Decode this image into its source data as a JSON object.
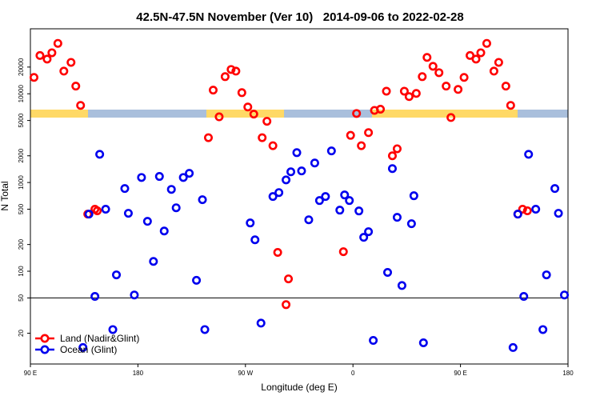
{
  "chart_data": {
    "type": "scatter",
    "title": "42.5N-47.5N November (Ver 10)   2014-09-06 to 2022-02-28",
    "xlabel": "Longitude (deg E)",
    "ylabel": "N Total",
    "xlim": [
      90,
      540
    ],
    "xticks": [
      {
        "value": 90,
        "label": "90 E"
      },
      {
        "value": 180,
        "label": "180"
      },
      {
        "value": 270,
        "label": "90 W"
      },
      {
        "value": 360,
        "label": "0"
      },
      {
        "value": 450,
        "label": "90 E"
      },
      {
        "value": 540,
        "label": "180"
      }
    ],
    "ylim": [
      9,
      54000
    ],
    "log_scale": true,
    "yticks": [
      20,
      50,
      100,
      200,
      500,
      1000,
      2000,
      5000,
      10000,
      20000
    ],
    "hline": 50,
    "legend": "bottom-left",
    "series": [
      {
        "name": "Land (Nadir&Glint)",
        "color": "#ff0000",
        "x": [
          93,
          98,
          104,
          108,
          113,
          118,
          124,
          128,
          132,
          138,
          144,
          146,
          239,
          243,
          248,
          253,
          258,
          262,
          267,
          272,
          277,
          284,
          288,
          293,
          297,
          306,
          304,
          352,
          358,
          363,
          367,
          373,
          378,
          383,
          388,
          393,
          397,
          403,
          407,
          413,
          418,
          422,
          427,
          432,
          438,
          442,
          448,
          453,
          458,
          463,
          467,
          472,
          478,
          482,
          488,
          492,
          498,
          502,
          506
        ],
        "values": [
          15300,
          27000,
          24600,
          29000,
          37000,
          18000,
          22600,
          12200,
          7400,
          440,
          500,
          480,
          3200,
          11000,
          5500,
          15600,
          18800,
          18000,
          10300,
          7100,
          5900,
          3200,
          4900,
          2600,
          163,
          82,
          42,
          166,
          3400,
          6000,
          2600,
          3650,
          6500,
          6700,
          10700,
          2000,
          2400,
          10700,
          9300,
          10100,
          15600,
          25700,
          20400,
          17300,
          12200,
          5400,
          11200,
          15300,
          27000,
          24600,
          29000,
          37000,
          18000,
          22600,
          12200,
          7400,
          440,
          500,
          480
        ]
      },
      {
        "name": "Ocean (Glint)",
        "color": "#0000ee",
        "x": [
          134,
          139,
          144,
          148,
          153,
          159,
          162,
          169,
          172,
          177,
          183,
          188,
          193,
          198,
          202,
          208,
          212,
          218,
          223,
          229,
          234,
          236,
          274,
          278,
          283,
          293,
          298,
          304,
          308,
          313,
          317,
          323,
          328,
          332,
          337,
          342,
          349,
          353,
          357,
          365,
          369,
          373,
          377,
          389,
          393,
          397,
          401,
          409,
          411,
          419,
          494,
          498,
          503,
          507,
          513,
          519,
          522,
          529,
          532,
          537
        ],
        "values": [
          13.8,
          440,
          52,
          2080,
          500,
          22,
          91,
          855,
          450,
          54,
          1140,
          365,
          129,
          1170,
          284,
          837,
          519,
          1140,
          1270,
          79,
          640,
          22,
          350,
          226,
          26,
          695,
          770,
          1070,
          1320,
          2170,
          1350,
          380,
          1660,
          626,
          695,
          2270,
          488,
          724,
          626,
          478,
          241,
          279,
          16.6,
          97,
          1435,
          405,
          69,
          343,
          709,
          15.6,
          13.8,
          440,
          52,
          2080,
          500,
          22,
          91,
          855,
          450,
          54
        ]
      }
    ]
  }
}
